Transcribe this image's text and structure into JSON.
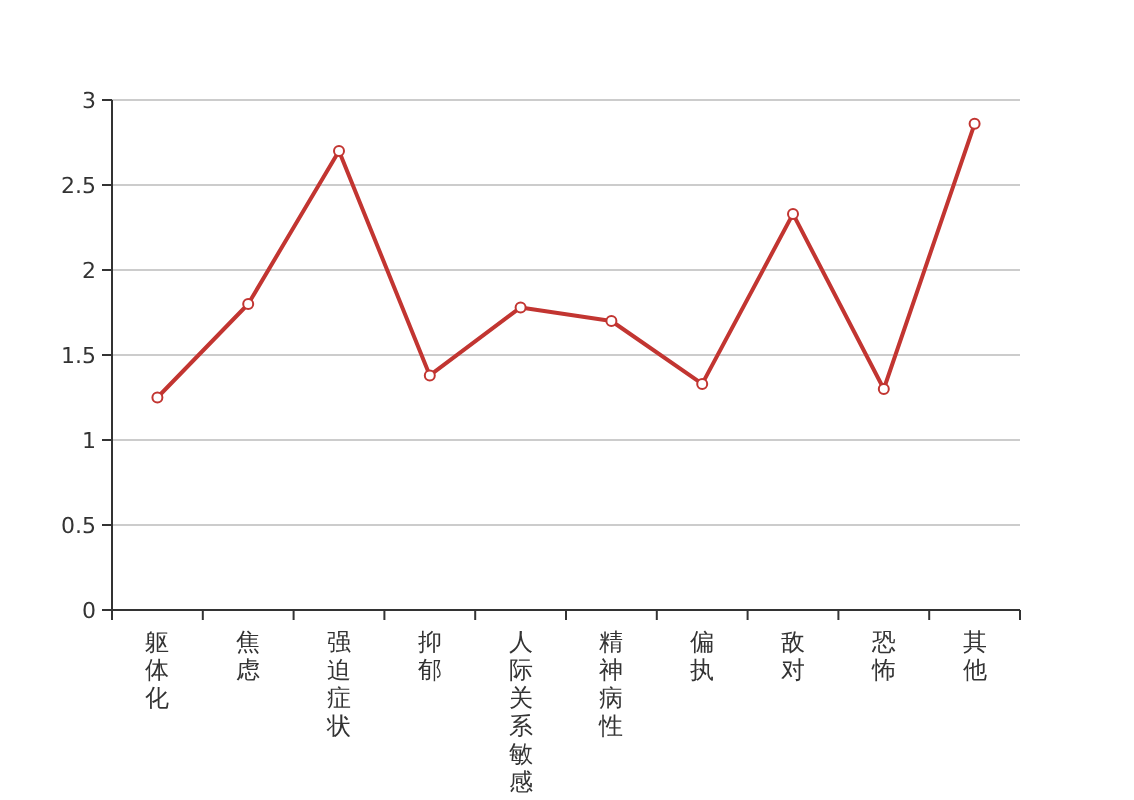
{
  "chart_data": {
    "type": "line",
    "categories": [
      "躯体化",
      "焦虑",
      "强迫症状",
      "抑郁",
      "人际关系敏感",
      "精神病性",
      "偏执",
      "敌对",
      "恐怖",
      "其他"
    ],
    "series": [
      {
        "color": "#c23531",
        "values": [
          1.25,
          1.8,
          2.7,
          1.38,
          1.78,
          1.7,
          1.33,
          2.33,
          1.3,
          2.86
        ]
      }
    ],
    "ylim": [
      0,
      3
    ],
    "yticks": [
      0,
      0.5,
      1,
      1.5,
      2,
      2.5,
      3
    ],
    "grid": "y",
    "marker": "circle",
    "line_style": "solid"
  }
}
